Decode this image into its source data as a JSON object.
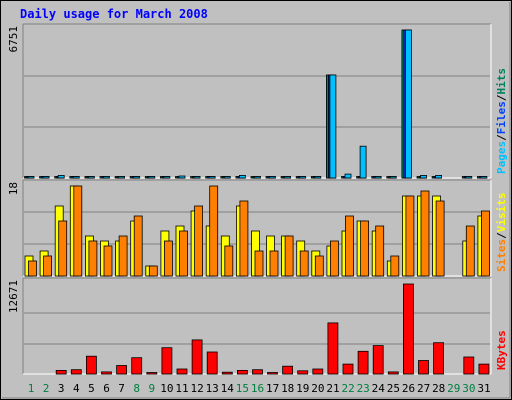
{
  "chart_data": {
    "type": "bar",
    "title": "Daily usage for March 2008",
    "days": [
      "1",
      "2",
      "3",
      "4",
      "5",
      "6",
      "7",
      "8",
      "9",
      "10",
      "11",
      "12",
      "13",
      "14",
      "15",
      "16",
      "17",
      "18",
      "19",
      "20",
      "21",
      "22",
      "23",
      "24",
      "25",
      "26",
      "27",
      "28",
      "29",
      "30",
      "31"
    ],
    "weekend_days": [
      "1",
      "2",
      "8",
      "9",
      "15",
      "16",
      "22",
      "23",
      "29",
      "30"
    ],
    "panels": [
      {
        "id": "pages_files_hits",
        "ymax_label": "6751",
        "ymax": 6751,
        "legend": [
          {
            "label": "Pages",
            "color": "#00c0ff"
          },
          {
            "label": "/",
            "color": "#000000"
          },
          {
            "label": "Files",
            "color": "#0040ff"
          },
          {
            "label": "/",
            "color": "#000000"
          },
          {
            "label": "Hits",
            "color": "#00805c"
          }
        ],
        "series": [
          {
            "name": "Hits",
            "color": "#00805c",
            "values": [
              60,
              60,
              60,
              60,
              60,
              60,
              60,
              60,
              60,
              60,
              60,
              60,
              60,
              60,
              60,
              60,
              60,
              60,
              60,
              60,
              4700,
              60,
              60,
              60,
              60,
              6751,
              60,
              60,
              0,
              60,
              60
            ]
          },
          {
            "name": "Files",
            "color": "#0040ff",
            "values": [
              50,
              50,
              50,
              50,
              50,
              50,
              50,
              50,
              50,
              50,
              50,
              50,
              50,
              50,
              50,
              50,
              50,
              50,
              50,
              50,
              4700,
              50,
              50,
              50,
              50,
              6751,
              50,
              50,
              0,
              50,
              50
            ]
          },
          {
            "name": "Pages",
            "color": "#00c0ff",
            "values": [
              30,
              30,
              120,
              30,
              30,
              30,
              30,
              30,
              30,
              30,
              90,
              30,
              30,
              30,
              120,
              30,
              30,
              30,
              30,
              30,
              4700,
              180,
              1450,
              60,
              30,
              6751,
              120,
              120,
              0,
              30,
              30
            ]
          }
        ]
      },
      {
        "id": "visits_sites",
        "ymax_label": "18",
        "ymax": 18,
        "legend": [
          {
            "label": "Sites",
            "color": "#ff8000"
          },
          {
            "label": "/",
            "color": "#000000"
          },
          {
            "label": "Visits",
            "color": "#ffff00"
          }
        ],
        "series": [
          {
            "name": "Visits",
            "color": "#ffff00",
            "values": [
              4,
              5,
              14,
              18,
              8,
              7,
              7,
              11,
              2,
              9,
              10,
              13,
              10,
              8,
              14,
              9,
              8,
              8,
              7,
              5,
              6,
              9,
              11,
              9,
              3,
              16,
              16,
              16,
              0,
              7,
              12
            ]
          },
          {
            "name": "Sites",
            "color": "#ff8000",
            "values": [
              3,
              4,
              11,
              18,
              7,
              6,
              8,
              12,
              2,
              7,
              9,
              14,
              18,
              6,
              15,
              5,
              5,
              8,
              5,
              4,
              7,
              12,
              11,
              10,
              4,
              16,
              17,
              15,
              0,
              10,
              13
            ]
          }
        ]
      },
      {
        "id": "kbytes",
        "ymax_label": "12671",
        "ymax": 12671,
        "legend": [
          {
            "label": "KBytes",
            "color": "#ff0000"
          }
        ],
        "series": [
          {
            "name": "KBytes",
            "color": "#ff0000",
            "values": [
              0,
              0,
              500,
              600,
              2500,
              300,
              1200,
              2300,
              200,
              3700,
              700,
              4800,
              3100,
              250,
              500,
              600,
              200,
              1100,
              450,
              700,
              7200,
              1400,
              3200,
              4000,
              300,
              12671,
              1900,
              4400,
              0,
              2400,
              1400
            ]
          }
        ]
      }
    ]
  }
}
